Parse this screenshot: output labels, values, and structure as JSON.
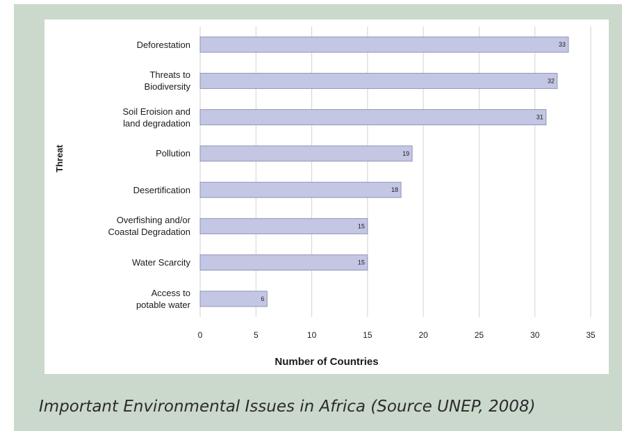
{
  "caption": "Important Environmental Issues in Africa (Source UNEP, 2008)",
  "chart_data": {
    "type": "bar",
    "orientation": "horizontal",
    "categories": [
      "Deforestation",
      "Threats to\nBiodiversity",
      "Soil Eroision and\nland degradation",
      "Pollution",
      "Desertification",
      "Overfishing and/or\nCoastal Degradation",
      "Water Scarcity",
      "Access to\npotable water"
    ],
    "values": [
      33,
      32,
      31,
      19,
      18,
      15,
      15,
      6
    ],
    "xlabel": "Number of Countries",
    "ylabel": "Threat",
    "xlim": [
      0,
      35
    ],
    "xticks": [
      "0",
      "5",
      "10",
      "15",
      "20",
      "25",
      "30",
      "35"
    ],
    "grid": "vertical",
    "data_labels": true,
    "colors": {
      "bar": "#c4c7e3",
      "bar_edge": "#8e92b8",
      "grid": "#d2d2d2"
    }
  }
}
